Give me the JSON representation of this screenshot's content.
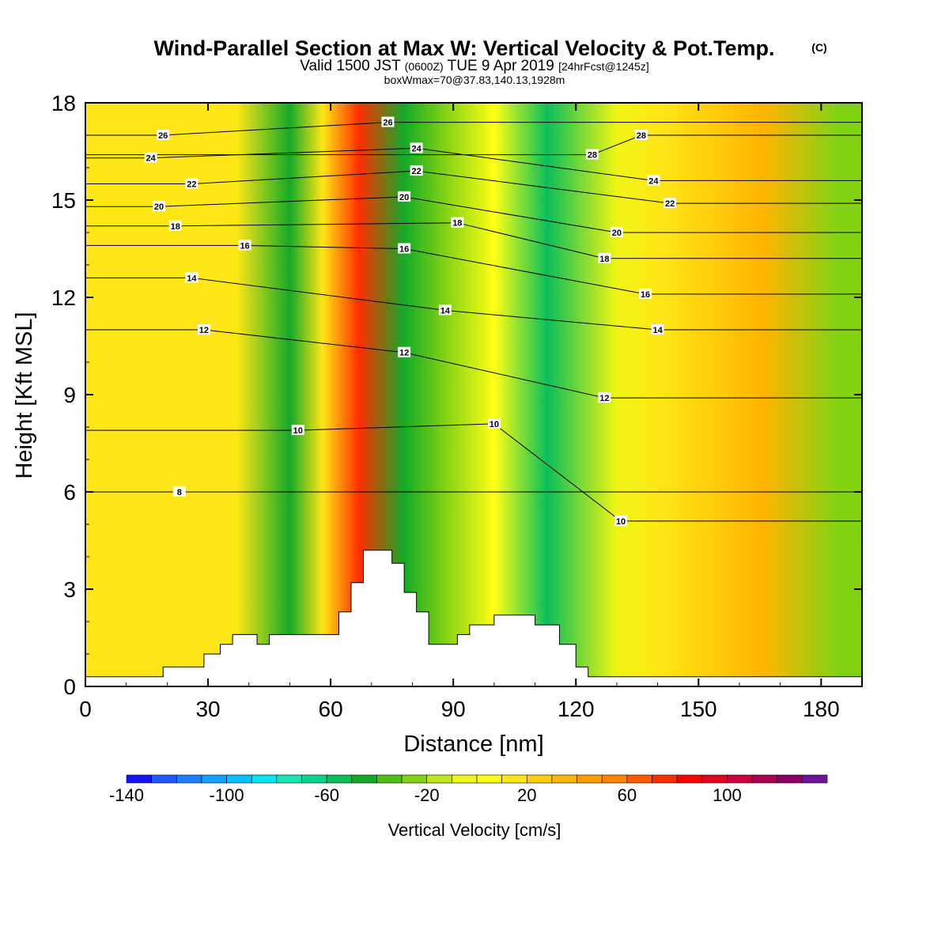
{
  "header": {
    "title": "Wind-Parallel Section at Max W: Vertical Velocity & Pot.Temp.",
    "copyright": "(C)",
    "valid_prefix": "Valid 1500 JST",
    "valid_utc": "(0600Z)",
    "valid_date": "TUE 9 Apr 2019",
    "forecast": "[24hrFcst@1245z]",
    "box_info": "boxWmax=70@37.83,140.13,1928m"
  },
  "colorbar": {
    "title": "Vertical Velocity [cm/s]",
    "levels": [
      -140,
      -130,
      -120,
      -110,
      -100,
      -90,
      -80,
      -70,
      -60,
      -50,
      -40,
      -30,
      -20,
      -10,
      0,
      10,
      20,
      30,
      40,
      50,
      60,
      70,
      80,
      90,
      100,
      110,
      120,
      130,
      140
    ],
    "labels": [
      "-140",
      "-100",
      "-60",
      "-20",
      "20",
      "60",
      "100"
    ],
    "colors": [
      "#1414ff",
      "#1e5aff",
      "#1e7dff",
      "#14a0ff",
      "#00c3ff",
      "#00e6f0",
      "#14e6b4",
      "#0ad28c",
      "#0abe5a",
      "#14aa28",
      "#50be14",
      "#82d214",
      "#bee61e",
      "#f0f514",
      "#ffff14",
      "#ffe614",
      "#ffcd0a",
      "#ffb400",
      "#ff9b00",
      "#ff8200",
      "#ff5a00",
      "#ff2d00",
      "#ff0000",
      "#e6001e",
      "#c8003c",
      "#aa0050",
      "#8c0064",
      "#6e1496"
    ]
  },
  "chart_data": {
    "type": "heatmap",
    "title": "Wind-Parallel Section at Max W: Vertical Velocity & Pot.Temp.",
    "xlabel": "Distance [nm]",
    "ylabel": "Height [Kft MSL]",
    "xlim": [
      0,
      190
    ],
    "ylim": [
      0,
      18
    ],
    "xticks": [
      0,
      30,
      60,
      90,
      120,
      150,
      180
    ],
    "yticks": [
      0,
      3,
      6,
      9,
      12,
      15,
      18
    ],
    "fill_variable": "Vertical Velocity [cm/s]",
    "fill_bands": [
      {
        "x_center": 13,
        "velocity": 15
      },
      {
        "x_center": 37,
        "velocity": 10
      },
      {
        "x_center": 50,
        "velocity": -45
      },
      {
        "x_center": 58,
        "velocity": 15
      },
      {
        "x_center": 67,
        "velocity": 70
      },
      {
        "x_center": 78,
        "velocity": -45
      },
      {
        "x_center": 88,
        "velocity": -25
      },
      {
        "x_center": 100,
        "velocity": 5
      },
      {
        "x_center": 113,
        "velocity": -55
      },
      {
        "x_center": 130,
        "velocity": -10
      },
      {
        "x_center": 141,
        "velocity": 15
      },
      {
        "x_center": 166,
        "velocity": 35
      },
      {
        "x_center": 184,
        "velocity": -25
      }
    ],
    "contour_variable": "Pot.Temp.",
    "contour_labels": [
      {
        "value": "26",
        "x": 19,
        "y": 17.0
      },
      {
        "value": "24",
        "x": 16,
        "y": 16.3
      },
      {
        "value": "22",
        "x": 26,
        "y": 15.5
      },
      {
        "value": "20",
        "x": 18,
        "y": 14.8
      },
      {
        "value": "18",
        "x": 22,
        "y": 14.2
      },
      {
        "value": "16",
        "x": 39,
        "y": 13.6
      },
      {
        "value": "14",
        "x": 26,
        "y": 12.6
      },
      {
        "value": "12",
        "x": 29,
        "y": 11.0
      },
      {
        "value": "10",
        "x": 52,
        "y": 7.9
      },
      {
        "value": "8",
        "x": 23,
        "y": 6.0
      },
      {
        "value": "26",
        "x": 74,
        "y": 17.4
      },
      {
        "value": "24",
        "x": 81,
        "y": 16.6
      },
      {
        "value": "22",
        "x": 81,
        "y": 15.9
      },
      {
        "value": "20",
        "x": 78,
        "y": 15.1
      },
      {
        "value": "18",
        "x": 91,
        "y": 14.3
      },
      {
        "value": "16",
        "x": 78,
        "y": 13.5
      },
      {
        "value": "14",
        "x": 88,
        "y": 11.6
      },
      {
        "value": "12",
        "x": 78,
        "y": 10.3
      },
      {
        "value": "10",
        "x": 100,
        "y": 8.1
      },
      {
        "value": "28",
        "x": 124,
        "y": 16.4
      },
      {
        "value": "28",
        "x": 136,
        "y": 17.0
      },
      {
        "value": "24",
        "x": 139,
        "y": 15.6
      },
      {
        "value": "22",
        "x": 143,
        "y": 14.9
      },
      {
        "value": "20",
        "x": 130,
        "y": 14.0
      },
      {
        "value": "18",
        "x": 127,
        "y": 13.2
      },
      {
        "value": "16",
        "x": 137,
        "y": 12.1
      },
      {
        "value": "14",
        "x": 140,
        "y": 11.0
      },
      {
        "value": "12",
        "x": 127,
        "y": 8.9
      },
      {
        "value": "10",
        "x": 131,
        "y": 5.1
      }
    ],
    "terrain": [
      [
        0,
        0.3
      ],
      [
        19,
        0.3
      ],
      [
        19,
        0.6
      ],
      [
        29,
        0.6
      ],
      [
        29,
        1.0
      ],
      [
        33,
        1.0
      ],
      [
        33,
        1.3
      ],
      [
        36,
        1.3
      ],
      [
        36,
        1.6
      ],
      [
        42,
        1.6
      ],
      [
        42,
        1.3
      ],
      [
        45,
        1.3
      ],
      [
        45,
        1.6
      ],
      [
        62,
        1.6
      ],
      [
        62,
        2.3
      ],
      [
        65,
        2.3
      ],
      [
        65,
        3.2
      ],
      [
        68,
        3.2
      ],
      [
        68,
        4.2
      ],
      [
        75,
        4.2
      ],
      [
        75,
        3.8
      ],
      [
        78,
        3.8
      ],
      [
        78,
        2.9
      ],
      [
        81,
        2.9
      ],
      [
        81,
        2.3
      ],
      [
        84,
        2.3
      ],
      [
        84,
        1.3
      ],
      [
        91,
        1.3
      ],
      [
        91,
        1.6
      ],
      [
        94,
        1.6
      ],
      [
        94,
        1.9
      ],
      [
        100,
        1.9
      ],
      [
        100,
        2.2
      ],
      [
        110,
        2.2
      ],
      [
        110,
        1.9
      ],
      [
        116,
        1.9
      ],
      [
        116,
        1.3
      ],
      [
        120,
        1.3
      ],
      [
        120,
        0.6
      ],
      [
        123,
        0.6
      ],
      [
        123,
        0.3
      ],
      [
        190,
        0.3
      ]
    ]
  }
}
